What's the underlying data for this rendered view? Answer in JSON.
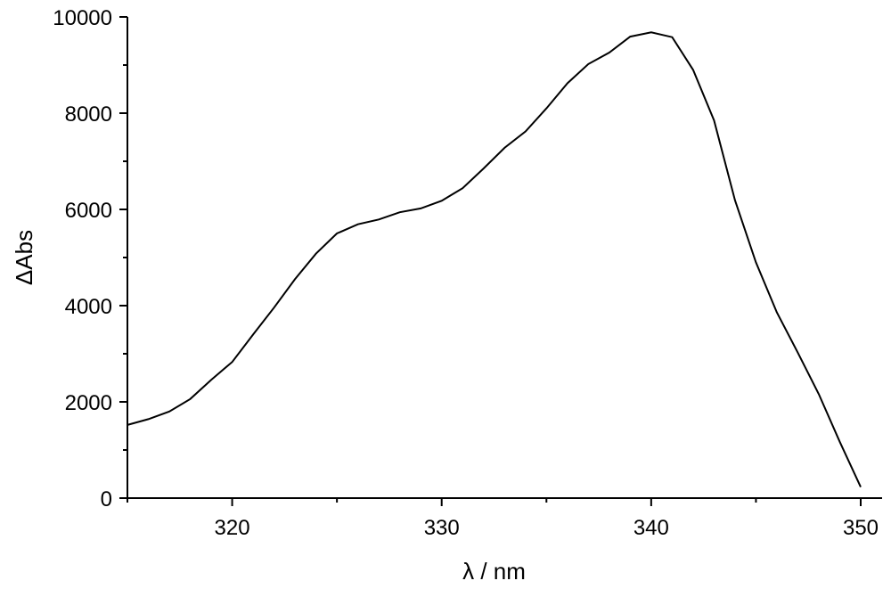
{
  "chart_data": {
    "type": "line",
    "xlabel": "λ / nm",
    "ylabel": "ΔAbs",
    "xlim": [
      315,
      350
    ],
    "ylim": [
      0,
      10000
    ],
    "x_major_ticks": [
      320,
      330,
      340,
      350
    ],
    "x_minor_ticks": [
      315,
      325,
      335,
      345
    ],
    "y_major_ticks": [
      0,
      2000,
      4000,
      6000,
      8000,
      10000
    ],
    "y_minor_ticks": [
      1000,
      3000,
      5000,
      7000,
      9000
    ],
    "x_tick_labels": [
      "320",
      "330",
      "340",
      "350"
    ],
    "y_tick_labels": [
      "0",
      "2000",
      "4000",
      "6000",
      "8000",
      "10000"
    ],
    "grid": false,
    "series": [
      {
        "line_color": "#000000",
        "x": [
          315,
          316,
          317,
          318,
          319,
          320,
          321,
          322,
          323,
          324,
          325,
          326,
          327,
          328,
          329,
          330,
          331,
          332,
          333,
          334,
          335,
          336,
          337,
          338,
          339,
          340,
          341,
          342,
          343,
          344,
          345,
          346,
          347,
          348,
          349,
          350
        ],
        "y": [
          1520,
          1640,
          1800,
          2060,
          2460,
          2830,
          3400,
          3960,
          4550,
          5080,
          5500,
          5690,
          5790,
          5940,
          6020,
          6180,
          6440,
          6850,
          7280,
          7620,
          8100,
          8620,
          9020,
          9260,
          9590,
          9680,
          9580,
          8900,
          7850,
          6190,
          4900,
          3860,
          3020,
          2160,
          1170,
          230
        ]
      }
    ]
  }
}
